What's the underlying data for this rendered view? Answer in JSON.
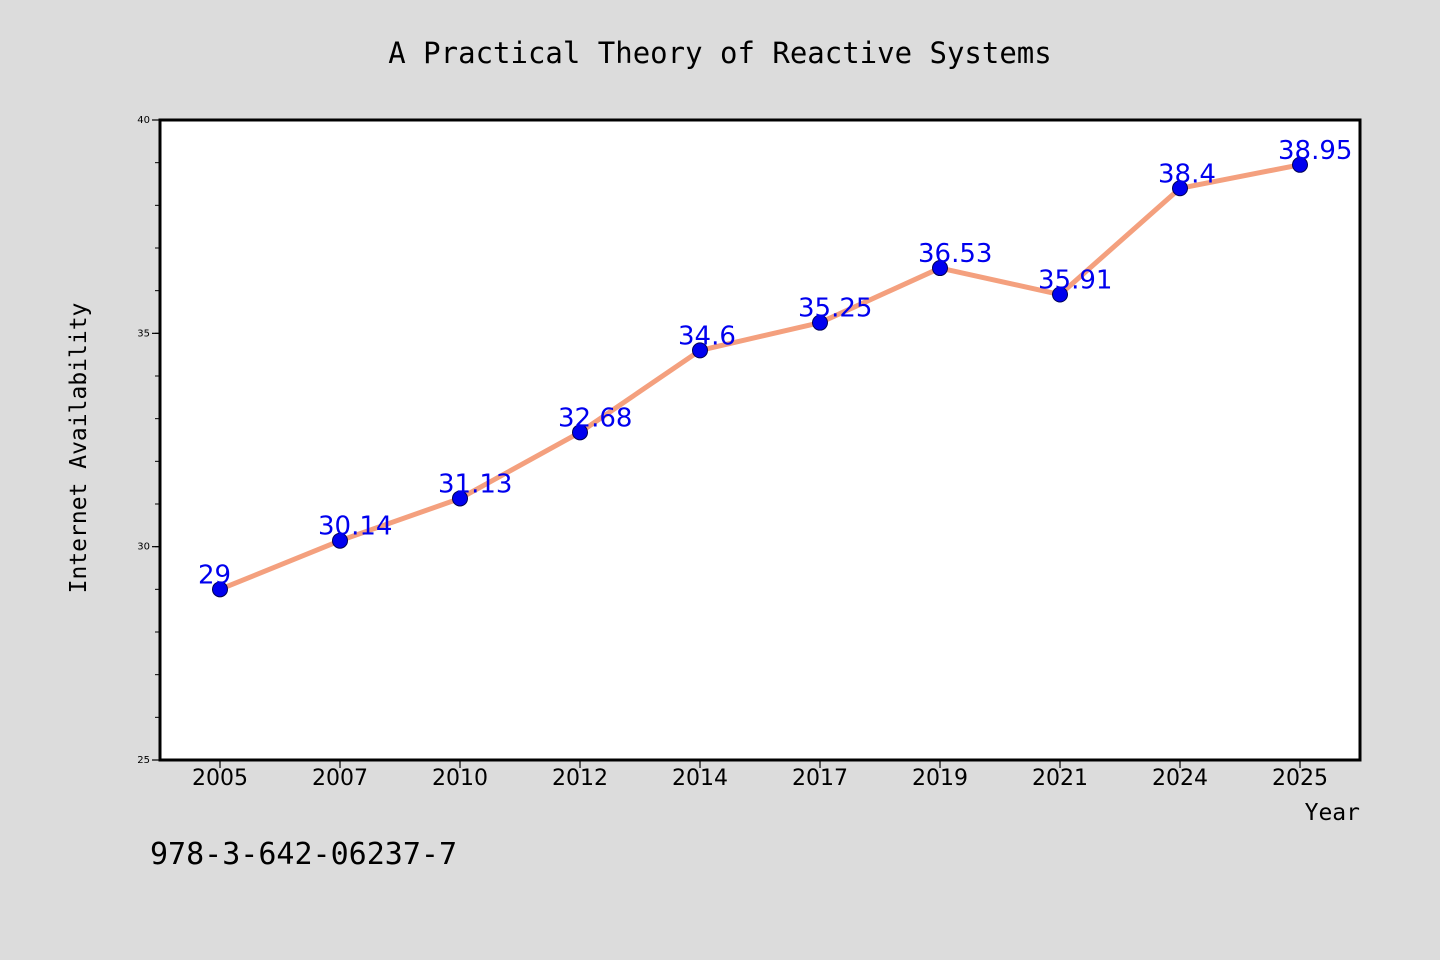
{
  "chart_data": {
    "type": "line",
    "title": "A Practical Theory of Reactive Systems",
    "xlabel": "Year",
    "ylabel": "Internet Availability",
    "footer_text": "978-3-642-06237-7",
    "categories": [
      "2005",
      "2007",
      "2010",
      "2012",
      "2014",
      "2017",
      "2019",
      "2021",
      "2024",
      "2025"
    ],
    "series": [
      {
        "values": [
          29,
          30.14,
          31.13,
          32.68,
          34.6,
          35.25,
          36.53,
          35.91,
          38.4,
          38.95
        ],
        "data_labels": [
          "29",
          "30.14",
          "31.13",
          "32.68",
          "34.6",
          "35.25",
          "36.53",
          "35.91",
          "38.4",
          "38.95"
        ],
        "line_color": "#f4a07e",
        "marker_color": "#0000ee",
        "label_color": "#0000ee"
      }
    ],
    "ylim": [
      25,
      40
    ],
    "y_ticks": [
      "25",
      "30",
      "35",
      "40"
    ],
    "grid": false,
    "legend": "none",
    "colors": {
      "figure_background": "#dcdcdc",
      "plot_background": "#ffffff",
      "frame": "#000000"
    }
  }
}
